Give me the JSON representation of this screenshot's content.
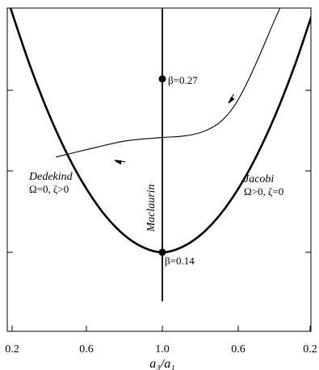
{
  "chart_data": {
    "type": "line",
    "title": "",
    "xlabel": "a₃/a₁",
    "ylabel": "",
    "x_tick_labels": [
      "0.2",
      "0.6",
      "1.0",
      "0.6",
      "0.2"
    ],
    "y_tick_count": 4,
    "series": [
      {
        "name": "Dedekind / Jacobi sequence",
        "x_axis_position": [
          -0.8,
          -0.7,
          -0.6,
          -0.5,
          -0.4,
          -0.3,
          -0.2,
          -0.1,
          0.0,
          0.1,
          0.2,
          0.3,
          0.4,
          0.5,
          0.6,
          0.7,
          0.8
        ],
        "height": [
          1.0,
          0.77,
          0.57,
          0.4,
          0.26,
          0.15,
          0.07,
          0.02,
          0.0,
          0.02,
          0.07,
          0.15,
          0.26,
          0.4,
          0.57,
          0.77,
          1.0
        ]
      },
      {
        "name": "Maclaurin",
        "x_axis_position": [
          0.0,
          0.0
        ],
        "height": [
          -0.2,
          1.0
        ]
      },
      {
        "name": "evolution track",
        "x_axis_position": [
          0.62,
          0.58,
          0.52,
          0.45,
          0.38,
          0.3,
          0.2,
          0.1,
          0.0,
          -0.2,
          -0.4,
          -0.56
        ],
        "height": [
          1.0,
          0.93,
          0.82,
          0.7,
          0.6,
          0.53,
          0.49,
          0.475,
          0.47,
          0.455,
          0.42,
          0.39
        ]
      }
    ],
    "annotations": {
      "dedekind_label": "Dedekind",
      "dedekind_cond": "Ω=0, ζ>0",
      "jacobi_label": "Jacobi",
      "jacobi_cond": "Ω>0, ζ=0",
      "maclaurin_label": "Maclaurin",
      "beta_top": "β=0.27",
      "beta_bottom": "β=0.14"
    },
    "markers": [
      {
        "label": "β=0.27",
        "x_axis_position": 0.0,
        "height": 0.71
      },
      {
        "label": "β=0.14",
        "x_axis_position": 0.0,
        "height": 0.0
      }
    ],
    "grid": false,
    "legend": "none"
  }
}
